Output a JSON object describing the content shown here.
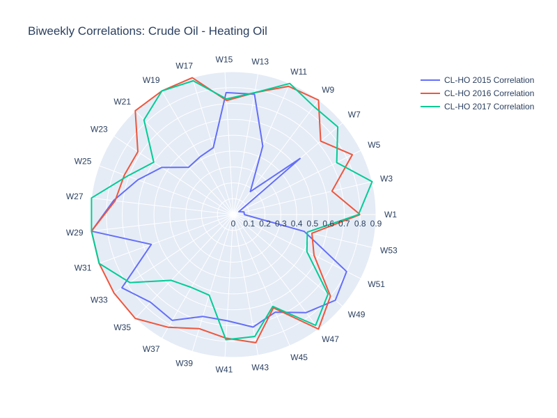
{
  "chart_data": {
    "type": "polar-line",
    "title": "Biweekly Correlations: Crude Oil - Heating Oil",
    "theta_labels": [
      "W1",
      "W3",
      "W5",
      "W7",
      "W9",
      "W11",
      "W13",
      "W15",
      "W17",
      "W19",
      "W21",
      "W23",
      "W25",
      "W27",
      "W29",
      "W31",
      "W33",
      "W35",
      "W37",
      "W39",
      "W41",
      "W43",
      "W45",
      "W47",
      "W49",
      "W51",
      "W53"
    ],
    "radial_ticks": [
      "0",
      "0.1",
      "0.2",
      "0.3",
      "0.4",
      "0.5",
      "0.6",
      "0.7",
      "0.8",
      "0.9"
    ],
    "rlim": [
      0,
      0.9
    ],
    "legend_position": "top-right",
    "grid": true,
    "series": [
      {
        "name": "CL-HO 2015 Correlation",
        "color": "#636efa",
        "values": [
          0.07,
          0.07,
          0.04,
          0.55,
          0.18,
          0.47,
          0.77,
          0.77,
          0.44,
          0.42,
          0.41,
          0.54,
          0.64,
          0.76,
          0.95,
          0.55,
          0.84,
          0.76,
          0.77,
          0.67,
          0.67,
          0.72,
          0.67,
          0.77,
          0.84,
          0.8,
          0.46
        ]
      },
      {
        "name": "CL-HO 2016 Correlation",
        "color": "#ef553b",
        "values": [
          0.8,
          0.64,
          0.84,
          0.72,
          0.91,
          0.88,
          0.78,
          0.72,
          0.91,
          0.96,
          0.93,
          0.72,
          0.73,
          0.75,
          1.0,
          0.98,
          0.96,
          0.92,
          0.82,
          0.75,
          0.78,
          0.82,
          0.64,
          0.91,
          0.8,
          0.57,
          0.51
        ]
      },
      {
        "name": "CL-HO 2017 Correlation",
        "color": "#00cc96",
        "values": [
          0.79,
          0.93,
          0.73,
          0.86,
          0.85,
          0.91,
          0.78,
          0.73,
          0.88,
          0.95,
          0.82,
          0.6,
          0.71,
          0.93,
          1.0,
          0.97,
          0.78,
          0.57,
          0.53,
          0.53,
          0.79,
          0.78,
          0.63,
          0.87,
          0.78,
          0.52,
          0.48
        ]
      }
    ]
  }
}
